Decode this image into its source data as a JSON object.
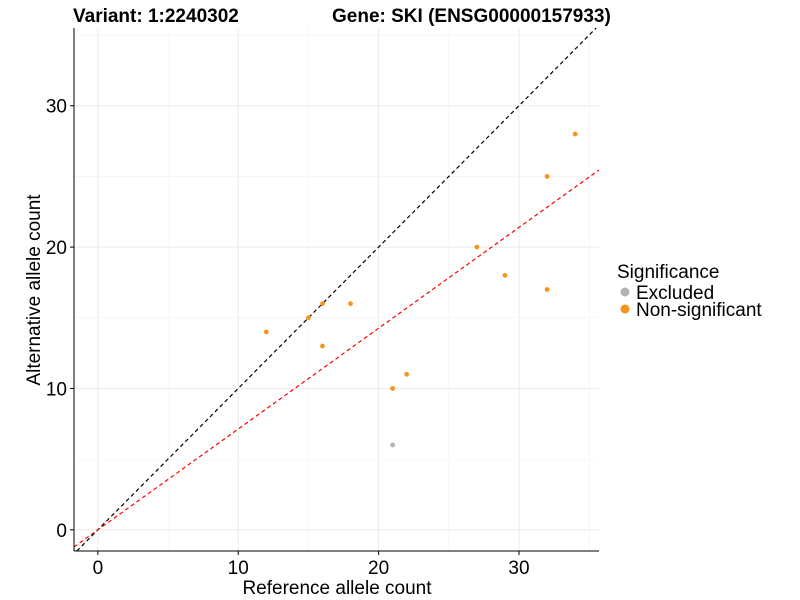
{
  "header": {
    "variant_title": "Variant: 1:2240302",
    "gene_title": "Gene: SKI (ENSG00000157933)"
  },
  "chart_data": {
    "type": "scatter",
    "xlabel": "Reference allele count",
    "ylabel": "Alternative allele count",
    "xlim": [
      -1.7,
      35.7
    ],
    "ylim": [
      -1.5,
      35.5
    ],
    "xticks": [
      0,
      10,
      20,
      30
    ],
    "yticks": [
      0,
      10,
      20,
      30
    ],
    "grid": true,
    "legend": {
      "title": "Significance",
      "placement": "right",
      "entries": [
        {
          "label": "Excluded",
          "color": "#b3b3b3"
        },
        {
          "label": "Non-significant",
          "color": "#f7941d"
        }
      ]
    },
    "series": [
      {
        "name": "Excluded",
        "color": "#b3b3b3",
        "points": [
          {
            "x": 21,
            "y": 6
          }
        ]
      },
      {
        "name": "Non-significant",
        "color": "#f7941d",
        "points": [
          {
            "x": 12,
            "y": 14
          },
          {
            "x": 15,
            "y": 15
          },
          {
            "x": 16,
            "y": 16
          },
          {
            "x": 16,
            "y": 13
          },
          {
            "x": 18,
            "y": 16
          },
          {
            "x": 21,
            "y": 10
          },
          {
            "x": 22,
            "y": 11
          },
          {
            "x": 27,
            "y": 20
          },
          {
            "x": 29,
            "y": 18
          },
          {
            "x": 32,
            "y": 25
          },
          {
            "x": 32,
            "y": 17
          },
          {
            "x": 34,
            "y": 28
          }
        ]
      }
    ],
    "reference_lines": [
      {
        "color": "#000000",
        "dash": "dashed",
        "intercept": 0,
        "slope": 1.0
      },
      {
        "color": "#ff0000",
        "dash": "dashed",
        "intercept": 0,
        "slope": 0.713
      }
    ]
  }
}
